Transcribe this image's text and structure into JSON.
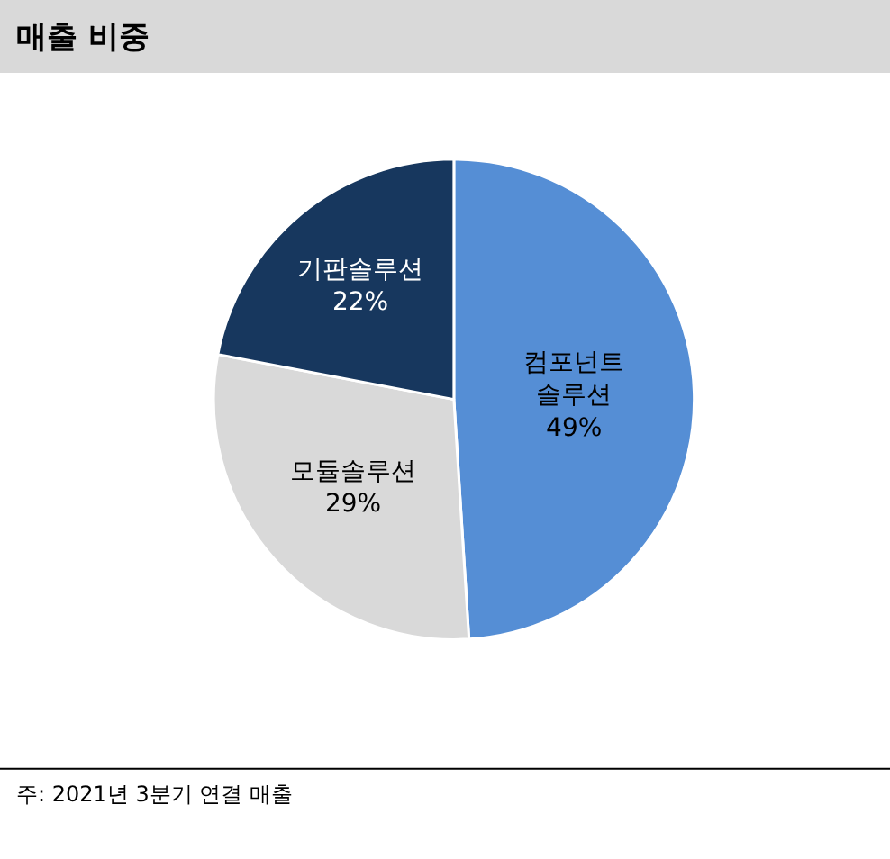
{
  "chart_data": {
    "type": "pie",
    "title": "매출 비중",
    "categories": [
      "컴포넌트\n솔루션",
      "모듈솔루션",
      "기판솔루션"
    ],
    "values": [
      49,
      29,
      22
    ],
    "value_labels": [
      "49%",
      "29%",
      "22%"
    ],
    "colors": [
      "#558ed5",
      "#d9d9d9",
      "#17375e"
    ],
    "annotations": [
      "주: 2021년 3분기 연결 매출"
    ]
  }
}
